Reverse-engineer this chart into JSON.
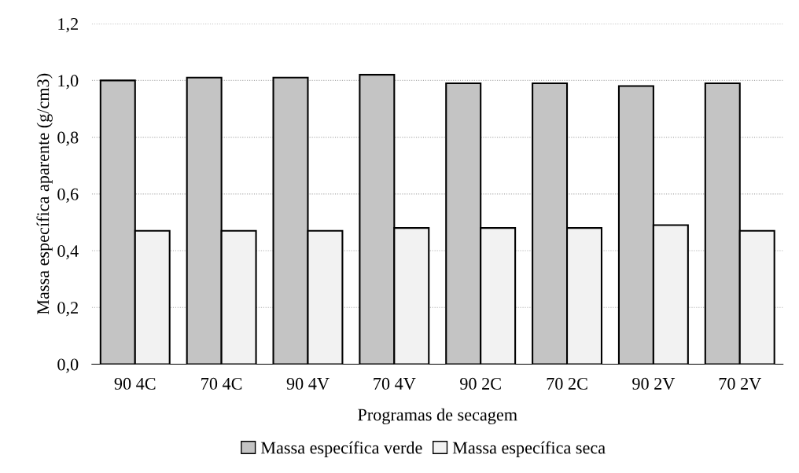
{
  "chart_data": {
    "type": "bar",
    "xlabel": "Programas de secagem",
    "ylabel": "Massa específica aparente (g/cm3)",
    "categories": [
      "90 4C",
      "70 4C",
      "90 4V",
      "70 4V",
      "90 2C",
      "70 2C",
      "90 2V",
      "70 2V"
    ],
    "series": [
      {
        "name": "Massa específica verde",
        "color": "#c4c4c4",
        "values": [
          1.0,
          1.01,
          1.01,
          1.02,
          0.99,
          0.99,
          0.98,
          0.99
        ]
      },
      {
        "name": "Massa específica seca",
        "color": "#f2f2f2",
        "values": [
          0.47,
          0.47,
          0.47,
          0.48,
          0.48,
          0.48,
          0.49,
          0.47
        ]
      }
    ],
    "ylim": [
      0,
      1.2
    ],
    "yticks": [
      {
        "value": 0,
        "label": "0,0"
      },
      {
        "value": 0.2,
        "label": "0,2"
      },
      {
        "value": 0.4,
        "label": "0,4"
      },
      {
        "value": 0.6,
        "label": "0,6"
      },
      {
        "value": 0.8,
        "label": "0,8"
      },
      {
        "value": 1.0,
        "label": "1,0"
      },
      {
        "value": 1.2,
        "label": "1,2"
      }
    ],
    "grid": "y",
    "legend": "bottom"
  }
}
